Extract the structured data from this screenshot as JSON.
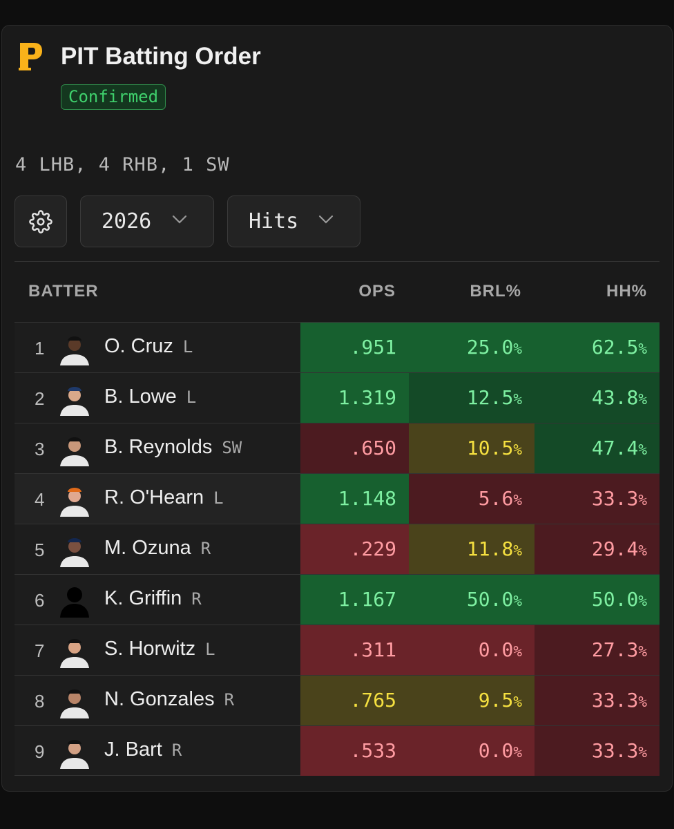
{
  "header": {
    "title": "PIT Batting Order",
    "status": "Confirmed",
    "handedness": "4 LHB, 4 RHB, 1 SW"
  },
  "controls": {
    "year": "2026",
    "stat": "Hits"
  },
  "columns": [
    "BATTER",
    "OPS",
    "BRL%",
    "HH%"
  ],
  "batters": [
    {
      "order": "1",
      "name": "O. Cruz",
      "hand": "L",
      "ops": ".951",
      "brl": "25.0",
      "hh": "62.5"
    },
    {
      "order": "2",
      "name": "B. Lowe",
      "hand": "L",
      "ops": "1.319",
      "brl": "12.5",
      "hh": "43.8"
    },
    {
      "order": "3",
      "name": "B. Reynolds",
      "hand": "SW",
      "ops": ".650",
      "brl": "10.5",
      "hh": "47.4"
    },
    {
      "order": "4",
      "name": "R. O'Hearn",
      "hand": "L",
      "ops": "1.148",
      "brl": "5.6",
      "hh": "33.3"
    },
    {
      "order": "5",
      "name": "M. Ozuna",
      "hand": "R",
      "ops": ".229",
      "brl": "11.8",
      "hh": "29.4"
    },
    {
      "order": "6",
      "name": "K. Griffin",
      "hand": "R",
      "ops": "1.167",
      "brl": "50.0",
      "hh": "50.0"
    },
    {
      "order": "7",
      "name": "S. Horwitz",
      "hand": "L",
      "ops": ".311",
      "brl": "0.0",
      "hh": "27.3"
    },
    {
      "order": "8",
      "name": "N. Gonzales",
      "hand": "R",
      "ops": ".765",
      "brl": "9.5",
      "hh": "33.3"
    },
    {
      "order": "9",
      "name": "J. Bart",
      "hand": "R",
      "ops": ".533",
      "brl": "0.0",
      "hh": "33.3"
    }
  ],
  "percent_sign": "%",
  "colors": {
    "good_strong": "#17602f",
    "good": "#144a27",
    "neutral": "#4a431b",
    "bad": "#6a2329",
    "bad_dark": "#4c1b20",
    "logo_gold": "#f9b21a"
  }
}
